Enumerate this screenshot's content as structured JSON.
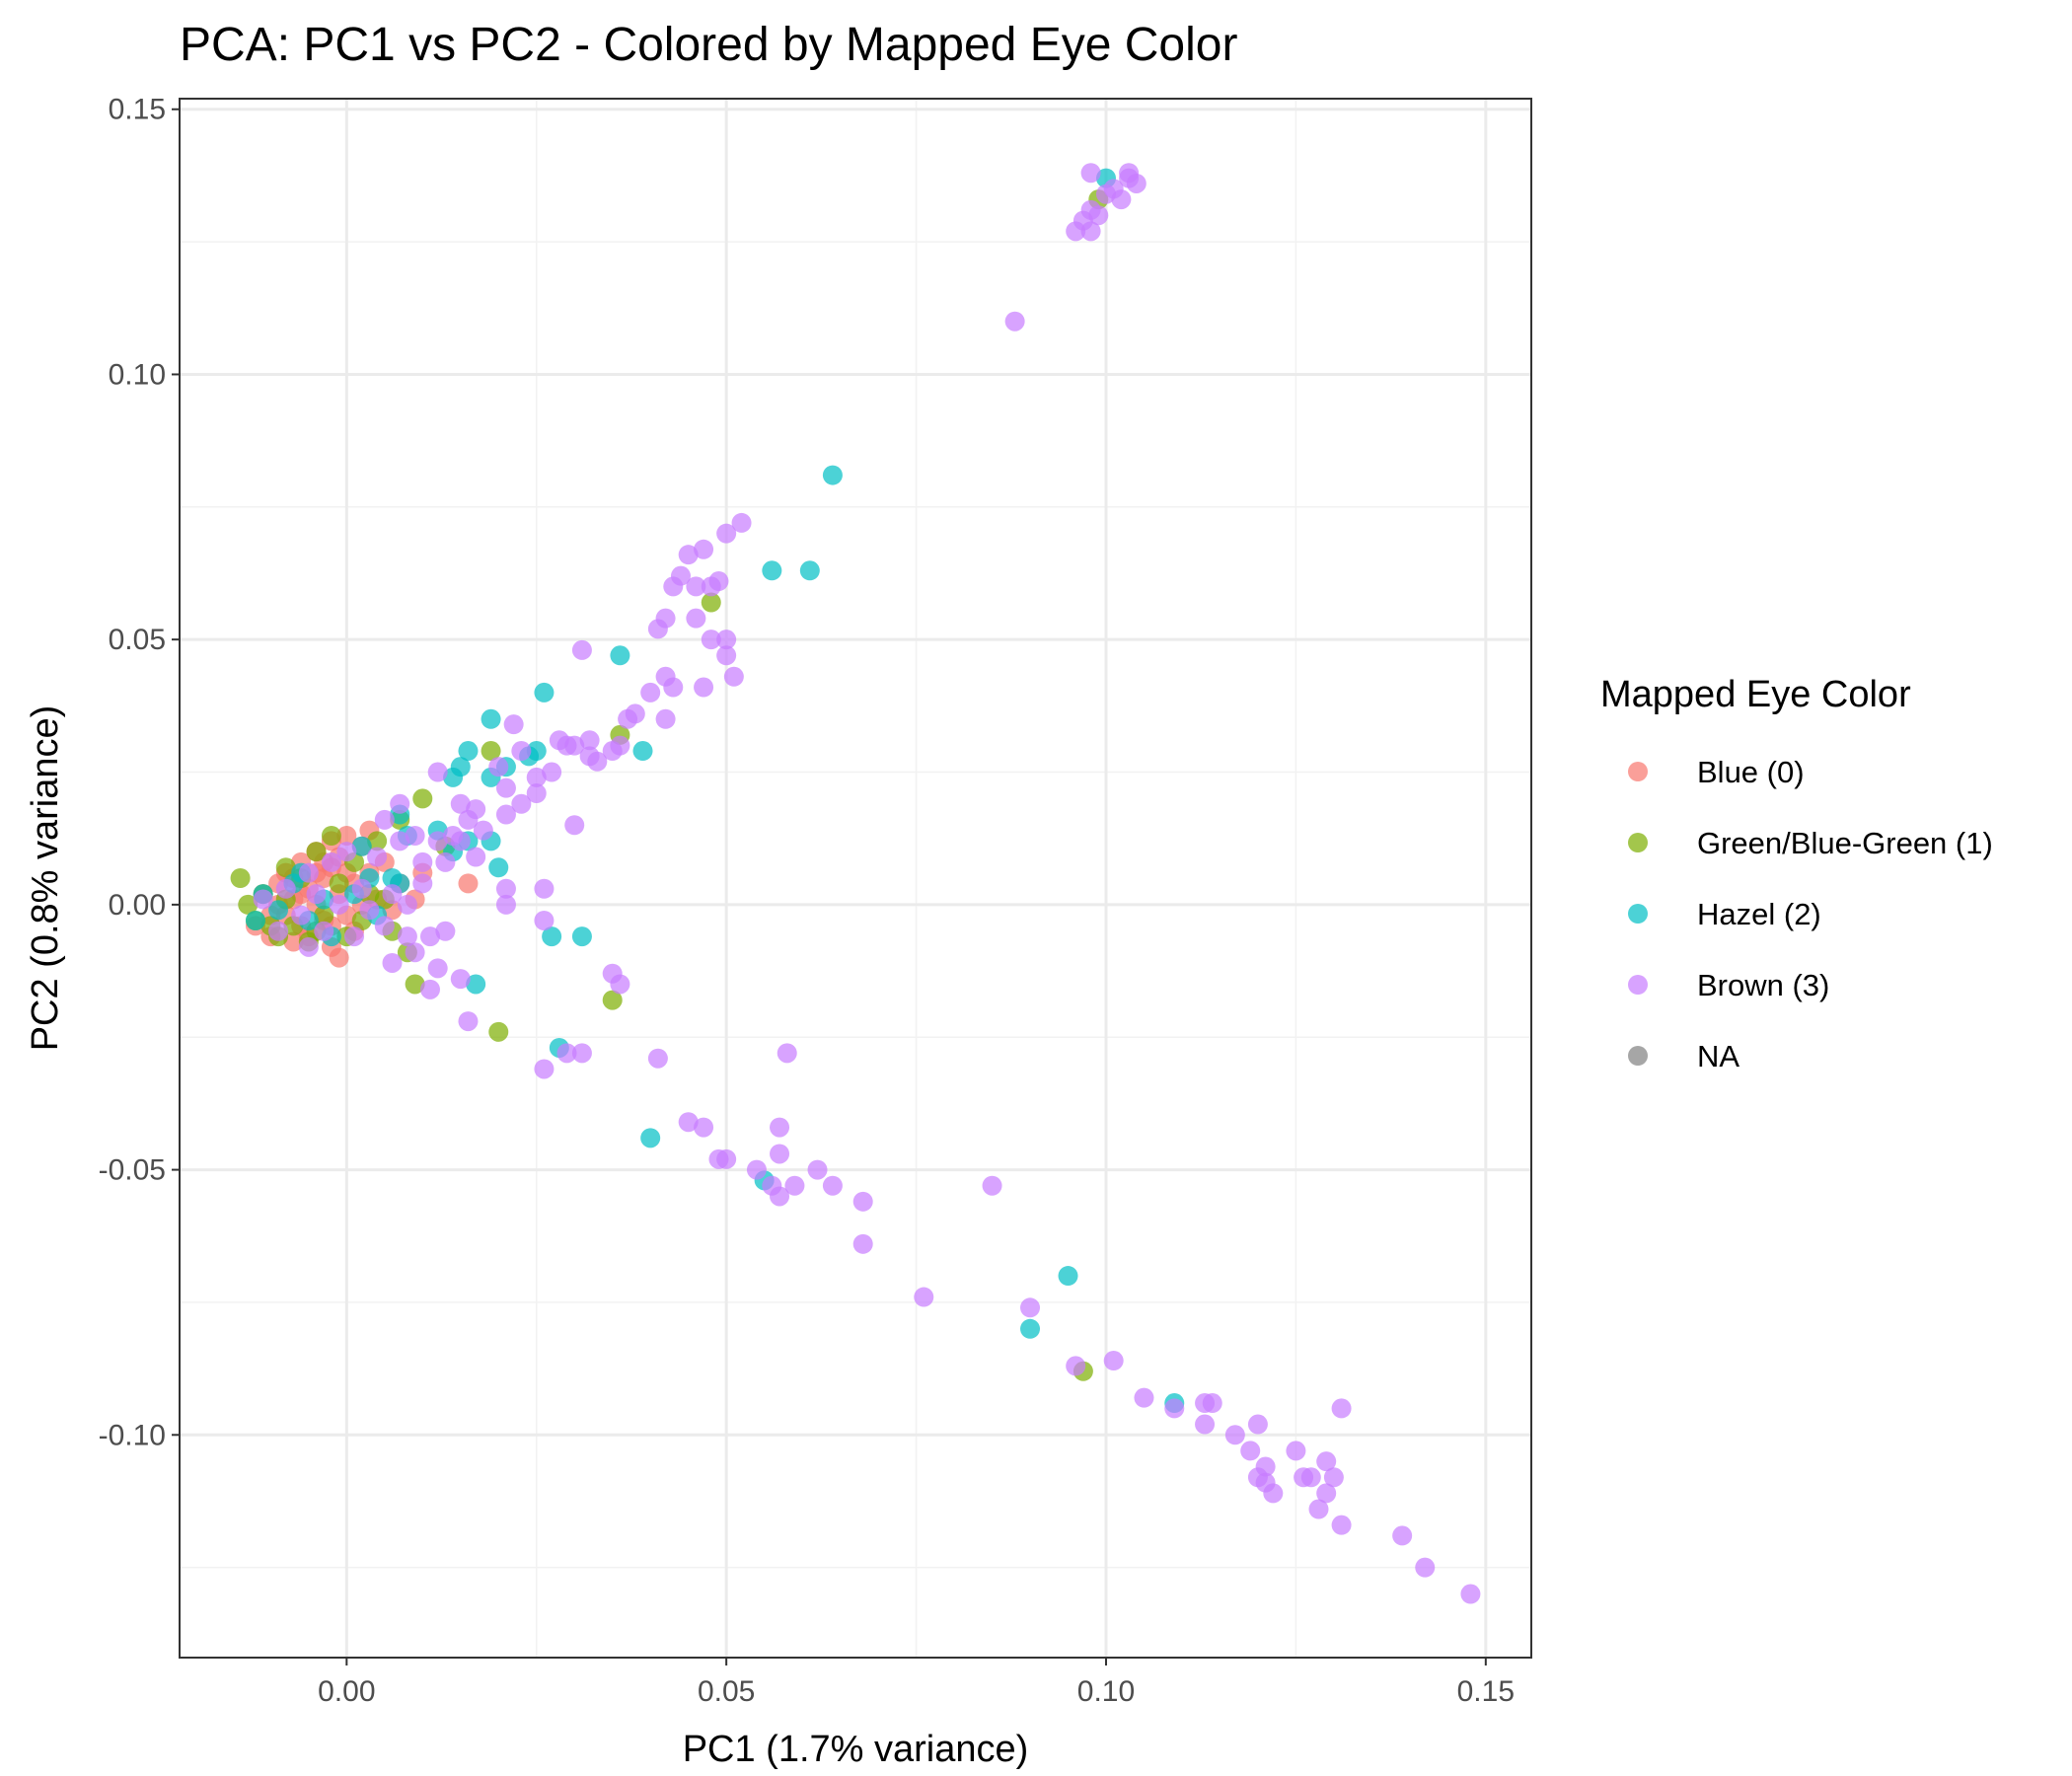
{
  "chart_data": {
    "type": "scatter",
    "title": "PCA: PC1 vs PC2 - Colored by Mapped Eye Color",
    "xlabel": "PC1 (1.7% variance)",
    "ylabel": "PC2 (0.8% variance)",
    "xlim": [
      -0.022,
      0.156
    ],
    "ylim": [
      -0.142,
      0.152
    ],
    "x_ticks": [
      0.0,
      0.05,
      0.1,
      0.15
    ],
    "x_tick_labels": [
      "0.00",
      "0.05",
      "0.10",
      "0.15"
    ],
    "y_ticks": [
      -0.1,
      -0.05,
      0.0,
      0.05,
      0.1,
      0.15
    ],
    "y_tick_labels": [
      "-0.10",
      "-0.05",
      "0.00",
      "0.05",
      "0.10",
      "0.15"
    ],
    "grid": true,
    "legend_position": "right",
    "legend_title": "Mapped Eye Color",
    "series": [
      {
        "name": "Blue (0)",
        "color": "#F8766D",
        "points": [
          [
            -0.012,
            -0.004
          ],
          [
            -0.011,
            0.002
          ],
          [
            -0.01,
            -0.006
          ],
          [
            -0.009,
            0.004
          ],
          [
            -0.008,
            -0.002
          ],
          [
            -0.008,
            0.006
          ],
          [
            -0.007,
            -0.007
          ],
          [
            -0.007,
            0.001
          ],
          [
            -0.006,
            0.008
          ],
          [
            -0.006,
            -0.004
          ],
          [
            -0.005,
            0.003
          ],
          [
            -0.005,
            -0.006
          ],
          [
            -0.004,
            0.01
          ],
          [
            -0.004,
            0.0
          ],
          [
            -0.003,
            0.005
          ],
          [
            -0.003,
            -0.003
          ],
          [
            -0.002,
            0.012
          ],
          [
            -0.002,
            0.007
          ],
          [
            -0.002,
            -0.008
          ],
          [
            -0.001,
            0.002
          ],
          [
            -0.001,
            0.009
          ],
          [
            0.0,
            0.013
          ],
          [
            0.0,
            -0.002
          ],
          [
            0.001,
            0.004
          ],
          [
            0.001,
            -0.005
          ],
          [
            0.002,
            0.011
          ],
          [
            0.003,
            0.014
          ],
          [
            0.003,
            0.006
          ],
          [
            0.004,
            0.001
          ],
          [
            0.005,
            0.008
          ],
          [
            0.006,
            -0.001
          ],
          [
            0.007,
            0.004
          ],
          [
            0.009,
            0.001
          ],
          [
            0.01,
            0.006
          ],
          [
            0.016,
            0.004
          ],
          [
            -0.009,
            0.0
          ],
          [
            -0.004,
            0.006
          ],
          [
            -0.002,
            -0.004
          ],
          [
            0.0,
            0.006
          ],
          [
            -0.006,
            0.002
          ],
          [
            -0.01,
            -0.002
          ],
          [
            -0.007,
            0.005
          ],
          [
            -0.003,
            0.008
          ],
          [
            -0.001,
            -0.01
          ],
          [
            0.002,
            0.0
          ]
        ]
      },
      {
        "name": "Green/Blue-Green (1)",
        "color": "#7CAE00",
        "points": [
          [
            -0.014,
            0.005
          ],
          [
            -0.013,
            0.0
          ],
          [
            -0.011,
            0.002
          ],
          [
            -0.01,
            -0.004
          ],
          [
            -0.009,
            -0.006
          ],
          [
            -0.008,
            0.001
          ],
          [
            -0.007,
            -0.004
          ],
          [
            -0.006,
            0.005
          ],
          [
            -0.005,
            -0.007
          ],
          [
            -0.004,
            0.01
          ],
          [
            -0.003,
            -0.002
          ],
          [
            -0.002,
            0.013
          ],
          [
            -0.001,
            0.004
          ],
          [
            0.0,
            -0.006
          ],
          [
            0.001,
            0.008
          ],
          [
            0.002,
            -0.003
          ],
          [
            0.003,
            0.002
          ],
          [
            0.004,
            0.012
          ],
          [
            0.005,
            0.001
          ],
          [
            0.006,
            -0.005
          ],
          [
            0.007,
            0.016
          ],
          [
            0.008,
            -0.009
          ],
          [
            0.009,
            -0.015
          ],
          [
            0.01,
            0.02
          ],
          [
            0.013,
            0.011
          ],
          [
            0.019,
            0.029
          ],
          [
            0.02,
            -0.024
          ],
          [
            0.035,
            -0.018
          ],
          [
            0.036,
            0.032
          ],
          [
            0.048,
            0.057
          ],
          [
            0.097,
            -0.088
          ],
          [
            0.099,
            0.133
          ],
          [
            -0.012,
            -0.003
          ],
          [
            -0.008,
            0.007
          ],
          [
            -0.004,
            -0.005
          ]
        ]
      },
      {
        "name": "Hazel (2)",
        "color": "#00BFC4",
        "points": [
          [
            -0.012,
            -0.003
          ],
          [
            -0.011,
            0.002
          ],
          [
            -0.009,
            -0.001
          ],
          [
            -0.007,
            0.004
          ],
          [
            -0.005,
            -0.003
          ],
          [
            -0.003,
            0.001
          ],
          [
            -0.002,
            -0.006
          ],
          [
            0.001,
            0.002
          ],
          [
            0.002,
            0.011
          ],
          [
            0.003,
            0.005
          ],
          [
            0.004,
            -0.002
          ],
          [
            0.006,
            0.005
          ],
          [
            0.007,
            0.004
          ],
          [
            0.007,
            0.017
          ],
          [
            0.008,
            0.013
          ],
          [
            0.012,
            0.014
          ],
          [
            0.014,
            0.01
          ],
          [
            0.014,
            0.024
          ],
          [
            0.015,
            0.026
          ],
          [
            0.016,
            0.029
          ],
          [
            0.016,
            0.012
          ],
          [
            0.017,
            -0.015
          ],
          [
            0.019,
            0.012
          ],
          [
            0.019,
            0.024
          ],
          [
            0.019,
            0.035
          ],
          [
            0.02,
            0.007
          ],
          [
            0.021,
            0.026
          ],
          [
            0.024,
            0.028
          ],
          [
            0.025,
            0.029
          ],
          [
            0.026,
            0.04
          ],
          [
            0.027,
            -0.006
          ],
          [
            0.028,
            -0.027
          ],
          [
            0.031,
            -0.006
          ],
          [
            0.036,
            0.047
          ],
          [
            0.039,
            0.029
          ],
          [
            0.04,
            -0.044
          ],
          [
            0.055,
            -0.052
          ],
          [
            0.056,
            0.063
          ],
          [
            0.061,
            0.063
          ],
          [
            0.064,
            0.081
          ],
          [
            0.09,
            -0.08
          ],
          [
            0.095,
            -0.07
          ],
          [
            0.1,
            0.137
          ],
          [
            0.109,
            -0.094
          ],
          [
            -0.006,
            0.006
          ]
        ]
      },
      {
        "name": "Brown (3)",
        "color": "#C77CFF",
        "points": [
          [
            -0.011,
            0.001
          ],
          [
            -0.009,
            -0.005
          ],
          [
            -0.008,
            0.003
          ],
          [
            -0.006,
            -0.002
          ],
          [
            -0.005,
            0.006
          ],
          [
            -0.005,
            -0.008
          ],
          [
            -0.004,
            0.002
          ],
          [
            -0.003,
            -0.005
          ],
          [
            -0.002,
            0.008
          ],
          [
            -0.001,
            0.0
          ],
          [
            0.0,
            0.01
          ],
          [
            0.001,
            -0.006
          ],
          [
            0.002,
            0.003
          ],
          [
            0.003,
            -0.001
          ],
          [
            0.004,
            0.009
          ],
          [
            0.005,
            -0.004
          ],
          [
            0.005,
            0.016
          ],
          [
            0.006,
            0.002
          ],
          [
            0.006,
            -0.011
          ],
          [
            0.007,
            0.019
          ],
          [
            0.007,
            0.012
          ],
          [
            0.008,
            0.0
          ],
          [
            0.008,
            -0.006
          ],
          [
            0.009,
            0.013
          ],
          [
            0.009,
            -0.009
          ],
          [
            0.01,
            0.008
          ],
          [
            0.01,
            0.004
          ],
          [
            0.011,
            -0.016
          ],
          [
            0.011,
            -0.006
          ],
          [
            0.012,
            0.012
          ],
          [
            0.012,
            0.025
          ],
          [
            0.012,
            -0.012
          ],
          [
            0.013,
            -0.005
          ],
          [
            0.013,
            0.008
          ],
          [
            0.014,
            0.013
          ],
          [
            0.015,
            -0.014
          ],
          [
            0.015,
            0.019
          ],
          [
            0.015,
            0.012
          ],
          [
            0.016,
            0.016
          ],
          [
            0.016,
            -0.022
          ],
          [
            0.017,
            0.018
          ],
          [
            0.017,
            0.009
          ],
          [
            0.018,
            0.014
          ],
          [
            0.02,
            0.026
          ],
          [
            0.021,
            0.017
          ],
          [
            0.021,
            0.003
          ],
          [
            0.021,
            0.0
          ],
          [
            0.021,
            0.022
          ],
          [
            0.022,
            0.034
          ],
          [
            0.023,
            0.029
          ],
          [
            0.023,
            0.019
          ],
          [
            0.025,
            0.021
          ],
          [
            0.025,
            0.024
          ],
          [
            0.026,
            0.003
          ],
          [
            0.026,
            -0.003
          ],
          [
            0.026,
            -0.031
          ],
          [
            0.027,
            0.025
          ],
          [
            0.028,
            0.031
          ],
          [
            0.029,
            0.03
          ],
          [
            0.029,
            -0.028
          ],
          [
            0.03,
            0.015
          ],
          [
            0.03,
            0.03
          ],
          [
            0.031,
            -0.028
          ],
          [
            0.031,
            0.048
          ],
          [
            0.032,
            0.028
          ],
          [
            0.032,
            0.031
          ],
          [
            0.033,
            0.027
          ],
          [
            0.035,
            -0.013
          ],
          [
            0.035,
            0.029
          ],
          [
            0.036,
            0.03
          ],
          [
            0.036,
            -0.015
          ],
          [
            0.037,
            0.035
          ],
          [
            0.038,
            0.036
          ],
          [
            0.04,
            0.04
          ],
          [
            0.041,
            -0.029
          ],
          [
            0.041,
            0.052
          ],
          [
            0.042,
            0.035
          ],
          [
            0.042,
            0.043
          ],
          [
            0.042,
            0.054
          ],
          [
            0.043,
            0.041
          ],
          [
            0.043,
            0.06
          ],
          [
            0.044,
            0.062
          ],
          [
            0.045,
            -0.041
          ],
          [
            0.045,
            0.066
          ],
          [
            0.046,
            0.054
          ],
          [
            0.046,
            0.06
          ],
          [
            0.047,
            -0.042
          ],
          [
            0.047,
            0.041
          ],
          [
            0.047,
            0.067
          ],
          [
            0.048,
            0.06
          ],
          [
            0.048,
            0.05
          ],
          [
            0.049,
            -0.048
          ],
          [
            0.049,
            0.061
          ],
          [
            0.05,
            0.047
          ],
          [
            0.05,
            0.05
          ],
          [
            0.05,
            0.07
          ],
          [
            0.05,
            -0.048
          ],
          [
            0.051,
            0.043
          ],
          [
            0.052,
            0.072
          ],
          [
            0.054,
            -0.05
          ],
          [
            0.056,
            -0.053
          ],
          [
            0.057,
            -0.055
          ],
          [
            0.057,
            -0.042
          ],
          [
            0.057,
            -0.047
          ],
          [
            0.058,
            -0.028
          ],
          [
            0.059,
            -0.053
          ],
          [
            0.062,
            -0.05
          ],
          [
            0.064,
            -0.053
          ],
          [
            0.068,
            -0.056
          ],
          [
            0.068,
            -0.064
          ],
          [
            0.076,
            -0.074
          ],
          [
            0.085,
            -0.053
          ],
          [
            0.088,
            0.11
          ],
          [
            0.09,
            -0.076
          ],
          [
            0.096,
            -0.087
          ],
          [
            0.096,
            0.127
          ],
          [
            0.097,
            0.129
          ],
          [
            0.098,
            0.131
          ],
          [
            0.098,
            0.138
          ],
          [
            0.098,
            0.127
          ],
          [
            0.099,
            0.13
          ],
          [
            0.1,
            0.134
          ],
          [
            0.101,
            0.135
          ],
          [
            0.101,
            -0.086
          ],
          [
            0.102,
            0.133
          ],
          [
            0.103,
            0.137
          ],
          [
            0.103,
            0.138
          ],
          [
            0.104,
            0.136
          ],
          [
            0.105,
            -0.093
          ],
          [
            0.109,
            -0.095
          ],
          [
            0.113,
            -0.098
          ],
          [
            0.113,
            -0.094
          ],
          [
            0.114,
            -0.094
          ],
          [
            0.117,
            -0.1
          ],
          [
            0.119,
            -0.103
          ],
          [
            0.12,
            -0.098
          ],
          [
            0.12,
            -0.108
          ],
          [
            0.121,
            -0.109
          ],
          [
            0.121,
            -0.106
          ],
          [
            0.122,
            -0.111
          ],
          [
            0.125,
            -0.103
          ],
          [
            0.126,
            -0.108
          ],
          [
            0.127,
            -0.108
          ],
          [
            0.128,
            -0.114
          ],
          [
            0.129,
            -0.105
          ],
          [
            0.129,
            -0.111
          ],
          [
            0.13,
            -0.108
          ],
          [
            0.131,
            -0.095
          ],
          [
            0.131,
            -0.117
          ],
          [
            0.139,
            -0.119
          ],
          [
            0.142,
            -0.125
          ],
          [
            0.148,
            -0.13
          ]
        ]
      },
      {
        "name": "NA",
        "color": "#808080",
        "points": []
      }
    ]
  }
}
